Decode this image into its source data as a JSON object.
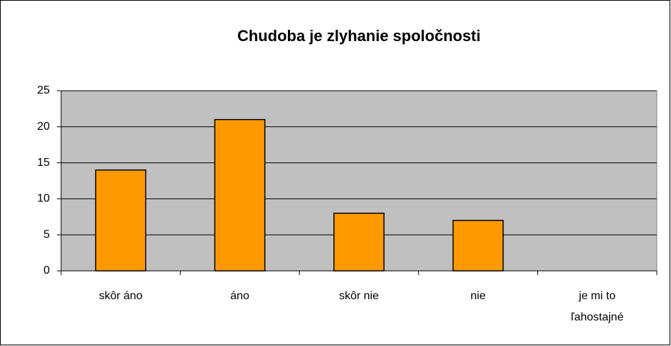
{
  "chart_data": {
    "type": "bar",
    "title": "Chudoba je zlyhanie spoločnosti",
    "categories": [
      "skôr áno",
      "áno",
      "skôr nie",
      "nie",
      "je mi to ľahostajné"
    ],
    "values": [
      14,
      21,
      8,
      7,
      0
    ],
    "color": "#ff9900",
    "plot_background": "#c0c0c0",
    "ylim": [
      0,
      25
    ],
    "yticks": [
      0,
      5,
      10,
      15,
      20,
      25
    ],
    "grid": true
  }
}
